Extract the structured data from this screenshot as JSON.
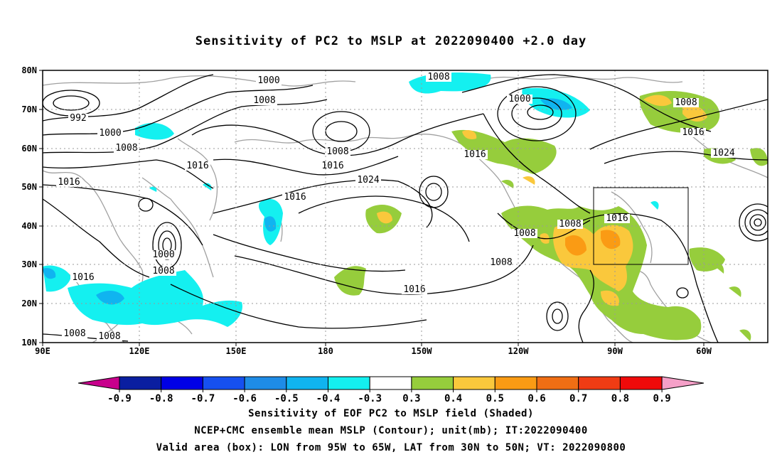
{
  "title": "Sensitivity of PC2 to MSLP at 2022090400 +2.0 day",
  "lat_labels": [
    "80N",
    "70N",
    "60N",
    "50N",
    "40N",
    "30N",
    "20N",
    "10N"
  ],
  "lon_labels": [
    "90E",
    "120E",
    "150E",
    "180",
    "150W",
    "120W",
    "90W",
    "60W"
  ],
  "colorbar": {
    "labels": [
      "-0.9",
      "-0.8",
      "-0.7",
      "-0.6",
      "-0.5",
      "-0.4",
      "-0.3",
      "0.3",
      "0.4",
      "0.5",
      "0.6",
      "0.7",
      "0.8",
      "0.9"
    ],
    "colors": [
      "#c8008c",
      "#0a1ea0",
      "#0000e6",
      "#1650f0",
      "#1e8ce6",
      "#10b4f0",
      "#14f0f0",
      "#ffffff",
      "#96cd3c",
      "#fac83c",
      "#fa9b14",
      "#f06e14",
      "#f03c14",
      "#f00a0a",
      "#f5a0c8"
    ]
  },
  "contour_labels": [
    {
      "text": "992"
    },
    {
      "text": "1000"
    },
    {
      "text": "1008"
    },
    {
      "text": "1016"
    },
    {
      "text": "1000"
    },
    {
      "text": "1008"
    },
    {
      "text": "1008"
    },
    {
      "text": "1016"
    },
    {
      "text": "1016"
    },
    {
      "text": "1000"
    },
    {
      "text": "1008"
    },
    {
      "text": "1008"
    },
    {
      "text": "1016"
    },
    {
      "text": "1008"
    },
    {
      "text": "1016"
    },
    {
      "text": "1024"
    },
    {
      "text": "1016"
    },
    {
      "text": "1008"
    },
    {
      "text": "1000"
    },
    {
      "text": "1008"
    },
    {
      "text": "1016"
    },
    {
      "text": "1016"
    },
    {
      "text": "1008"
    },
    {
      "text": "1008"
    },
    {
      "text": "1016"
    },
    {
      "text": "1008"
    },
    {
      "text": "1024"
    },
    {
      "text": "1008"
    }
  ],
  "valid_box": {
    "lon_from": "95W",
    "lon_to": "65W",
    "lat_from": "30N",
    "lat_to": "50N"
  },
  "captions": [
    "Sensitivity of EOF PC2 to MSLP field (Shaded)",
    "NCEP+CMC ensemble mean MSLP (Contour); unit(mb); IT:2022090400",
    "Valid area (box): LON from 95W to 65W, LAT from 30N to 50N; VT: 2022090800"
  ]
}
